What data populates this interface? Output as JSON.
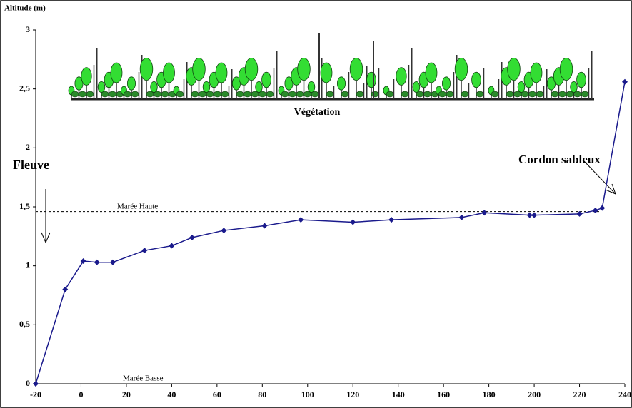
{
  "chart_data": {
    "type": "line",
    "y_axis_label": "Altitude (m)",
    "annotations": {
      "vegetation": "Végétation",
      "river": "Fleuve",
      "sand_bar": "Cordon sableux",
      "high_tide": "Marée Haute",
      "low_tide": "Marée Basse"
    },
    "high_tide_level": 1.46,
    "x": [
      -20,
      -7,
      1,
      7,
      14,
      28,
      40,
      49,
      63,
      81,
      97,
      120,
      137,
      168,
      178,
      198,
      200,
      220,
      227,
      230,
      240
    ],
    "series": [
      {
        "color": "#1a1a8c",
        "values": [
          0,
          0.8,
          1.04,
          1.03,
          1.03,
          1.13,
          1.17,
          1.24,
          1.3,
          1.34,
          1.39,
          1.37,
          1.39,
          1.41,
          1.45,
          1.43,
          1.43,
          1.44,
          1.47,
          1.49,
          2.56
        ]
      }
    ],
    "xlim": [
      -20,
      240
    ],
    "xticks": [
      -20,
      0,
      20,
      40,
      60,
      80,
      100,
      120,
      140,
      160,
      180,
      200,
      220,
      240
    ],
    "ylim": [
      0,
      3
    ],
    "yticks": [
      0,
      {
        "value": 0.5,
        "label": "0,5"
      },
      1,
      {
        "value": 1.5,
        "label": "1,5"
      },
      2,
      {
        "value": 2.5,
        "label": "2,5"
      },
      3
    ]
  }
}
